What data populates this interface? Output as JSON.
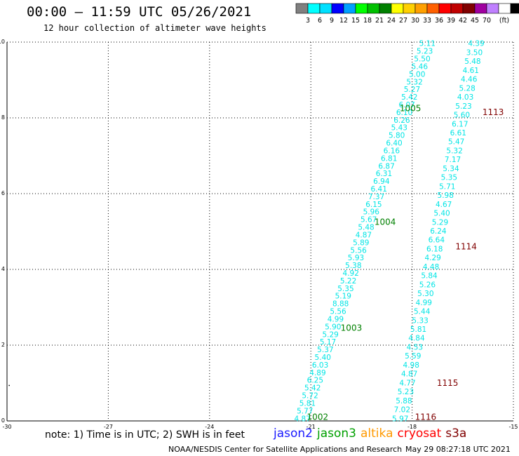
{
  "header": {
    "title": "00:00 – 11:59 UTC 05/26/2021",
    "subtitle": "12 hour collection of altimeter wave heights"
  },
  "color_scale": {
    "unit": "(ft)",
    "colors": [
      "#808080",
      "#00ffff",
      "#00e0ff",
      "#0000ff",
      "#00a0ff",
      "#00ff00",
      "#00c000",
      "#008000",
      "#ffff00",
      "#ffd000",
      "#ffa000",
      "#ff6000",
      "#ff0000",
      "#c00000",
      "#800000",
      "#a000a0",
      "#c080ff",
      "#ffffff",
      "#000000"
    ],
    "labels": [
      "3",
      "6",
      "9",
      "12",
      "15",
      "18",
      "21",
      "24",
      "27",
      "30",
      "33",
      "36",
      "39",
      "42",
      "45",
      "70"
    ]
  },
  "chart_data": {
    "type": "scatter",
    "xlim": [
      -30,
      -15
    ],
    "ylim": [
      0,
      10
    ],
    "x_ticks": [
      "-30",
      "-27",
      "-24",
      "-21",
      "-18",
      "-15"
    ],
    "y_ticks": [
      "0",
      "2",
      "4",
      "6",
      "8",
      "10"
    ],
    "grid": true,
    "tracks": [
      {
        "id": "1002",
        "satellite": "jason3",
        "color": "#00e5e5",
        "label_color": "#008000",
        "x_start": -21.25,
        "y_start": 0.05,
        "x_end": -17.55,
        "y_end": 9.95,
        "values": [
          "4.87",
          "5.77",
          "5.81",
          "5.72",
          "5.42",
          "6.25",
          "4.89",
          "6.03",
          "5.40",
          "5.37",
          "5.17",
          "5.29",
          "5.90",
          "4.99",
          "5.56",
          "8.88",
          "5.19",
          "5.35",
          "5.22",
          "4.92",
          "5.38",
          "5.93",
          "5.56",
          "5.89",
          "4.87",
          "5.48",
          "5.67",
          "5.96",
          "6.15",
          "7.37",
          "6.41",
          "6.94",
          "6.31",
          "6.87",
          "6.81",
          "6.16",
          "6.40",
          "5.80",
          "5.43",
          "6.26",
          "6.10",
          "6.07",
          "5.42",
          "5.27",
          "5.32",
          "5.00",
          "5.46",
          "5.50",
          "5.23",
          "5.11"
        ]
      },
      {
        "id": "1114",
        "satellite": "cryosat",
        "color": "#00e5e5",
        "label_color": "#800000",
        "x_start": -18.35,
        "y_start": 0.05,
        "x_end": -16.1,
        "y_end": 9.95,
        "values": [
          "5.97",
          "7.02",
          "5.88",
          "5.23",
          "4.77",
          "4.87",
          "4.98",
          "5.59",
          "4.53",
          "4.84",
          "5.81",
          "5.33",
          "5.44",
          "4.99",
          "5.30",
          "5.26",
          "5.84",
          "4.48",
          "4.29",
          "6.18",
          "6.64",
          "6.24",
          "5.29",
          "5.40",
          "4.67",
          "5.98",
          "5.71",
          "5.35",
          "5.34",
          "7.17",
          "5.32",
          "5.47",
          "6.61",
          "6.17",
          "5.60",
          "5.23",
          "4.03",
          "5.28",
          "4.46",
          "4.61",
          "5.48",
          "3.50",
          "4.39"
        ]
      }
    ],
    "markers": [
      {
        "label": "1002",
        "x": -20.8,
        "y": 0.1,
        "color": "#008000"
      },
      {
        "label": "1003",
        "x": -19.8,
        "y": 2.45,
        "color": "#008000"
      },
      {
        "label": "1004",
        "x": -18.8,
        "y": 5.25,
        "color": "#008000"
      },
      {
        "label": "1005",
        "x": -18.05,
        "y": 8.25,
        "color": "#008000"
      },
      {
        "label": "1116",
        "x": -17.6,
        "y": 0.1,
        "color": "#800000"
      },
      {
        "label": "1115",
        "x": -16.95,
        "y": 1.0,
        "color": "#800000"
      },
      {
        "label": "1114",
        "x": -16.4,
        "y": 4.6,
        "color": "#800000"
      },
      {
        "label": "1113",
        "x": -15.6,
        "y": 8.15,
        "color": "#800000"
      }
    ]
  },
  "note": "note: 1) Time is in UTC; 2) SWH is in feet",
  "satellites": [
    {
      "name": "jason2",
      "color": "#1a1aff"
    },
    {
      "name": "jason3",
      "color": "#00a000"
    },
    {
      "name": "altika",
      "color": "#ff9900"
    },
    {
      "name": "cryosat",
      "color": "#ff0000"
    },
    {
      "name": "s3a",
      "color": "#800000"
    }
  ],
  "footer": {
    "left": "NOAA/NESDIS Center for Satellite Applications and Research",
    "right": "May 29 08:27:18 UTC 2021"
  }
}
